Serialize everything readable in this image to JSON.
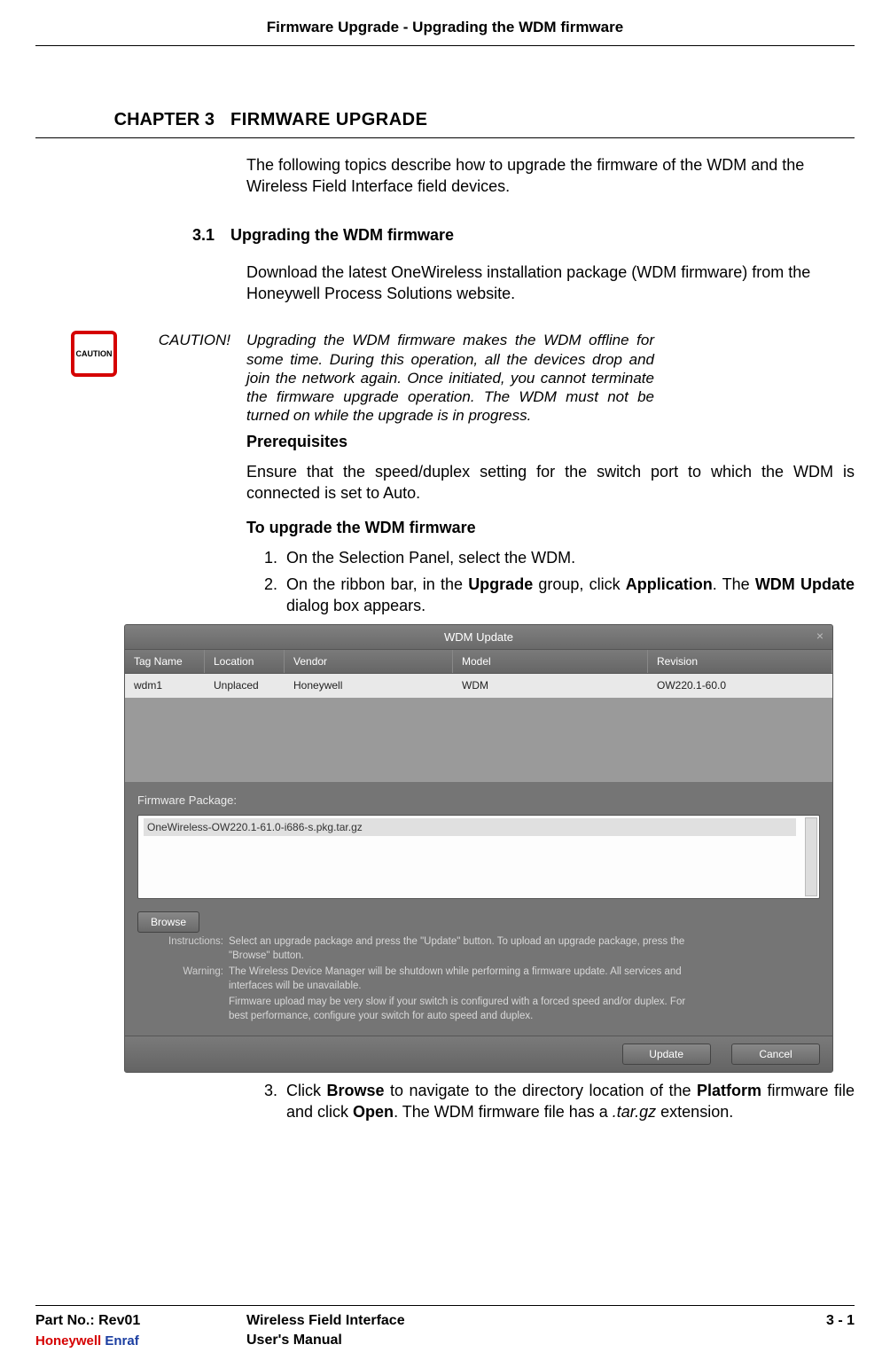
{
  "runningHeader": "Firmware Upgrade - Upgrading the WDM firmware",
  "chapter": {
    "label": "CHAPTER 3",
    "title": "FIRMWARE UPGRADE"
  },
  "intro": "The following topics describe how to upgrade the firmware of the WDM and the Wireless Field Interface field devices.",
  "section": {
    "num": "3.1",
    "title": "Upgrading the WDM firmware"
  },
  "sectionBody": "Download the latest OneWireless installation package (WDM firmware) from the Honeywell Process Solutions website.",
  "caution": {
    "iconText": "CAUTION",
    "label": "CAUTION!",
    "text": "Upgrading the WDM firmware makes the WDM offline for some time. During this operation, all the devices drop and join the network again. Once initiated, you cannot terminate the firmware upgrade operation. The WDM must not be turned on while the upgrade is in progress."
  },
  "prereqHead": "Prerequisites",
  "prereqText": "Ensure that the speed/duplex setting for the switch port to which the WDM is connected is set to Auto.",
  "procHead": "To upgrade the WDM firmware",
  "steps": {
    "s1": "On the Selection Panel, select the WDM.",
    "s2a": "On the ribbon bar, in the ",
    "s2b": "Upgrade",
    "s2c": " group, click ",
    "s2d": "Application",
    "s2e": ". The ",
    "s2f": "WDM Update",
    "s2g": " dialog box appears.",
    "s3a": "Click ",
    "s3b": "Browse",
    "s3c": " to navigate to the directory location of the ",
    "s3d": "Platform",
    "s3e": " firmware file and click ",
    "s3f": "Open",
    "s3g": ". The WDM firmware file has a ",
    "s3h": ".tar.gz",
    "s3i": " extension."
  },
  "dialog": {
    "title": "WDM Update",
    "close": "×",
    "columns": {
      "tag": "Tag Name",
      "loc": "Location",
      "ven": "Vendor",
      "mod": "Model",
      "rev": "Revision"
    },
    "row": {
      "tag": "wdm1",
      "loc": "Unplaced",
      "ven": "Honeywell",
      "mod": "WDM",
      "rev": "OW220.1-60.0"
    },
    "pkgLabel": "Firmware Package:",
    "pkgItem": "OneWireless-OW220.1-61.0-i686-s.pkg.tar.gz",
    "browse": "Browse",
    "instrLabel": "Instructions:",
    "instrText": "Select an upgrade package and press the \"Update\" button. To upload an upgrade package, press the \"Browse\" button.",
    "warnLabel": "Warning:",
    "warnText1": "The Wireless Device Manager will be shutdown while performing a firmware update. All services and interfaces will be unavailable.",
    "warnText2": "Firmware upload may be very slow if your switch is configured with a forced speed and/or duplex. For best performance, configure your switch for auto speed and duplex.",
    "update": "Update",
    "cancel": "Cancel",
    "colors": {
      "dialog_bg": "#6e6e6e",
      "header_grad_top": "#808080",
      "header_grad_bot": "#6a6a6a",
      "row_bg": "#e9e9e9",
      "caution_border": "#d50000"
    }
  },
  "footer": {
    "part": "Part No.: Rev01",
    "brand_hw": "Honeywell",
    "brand_en": " Enraf",
    "center1": "Wireless Field Interface",
    "center2": "User's Manual",
    "pageNum": "3 - 1"
  }
}
